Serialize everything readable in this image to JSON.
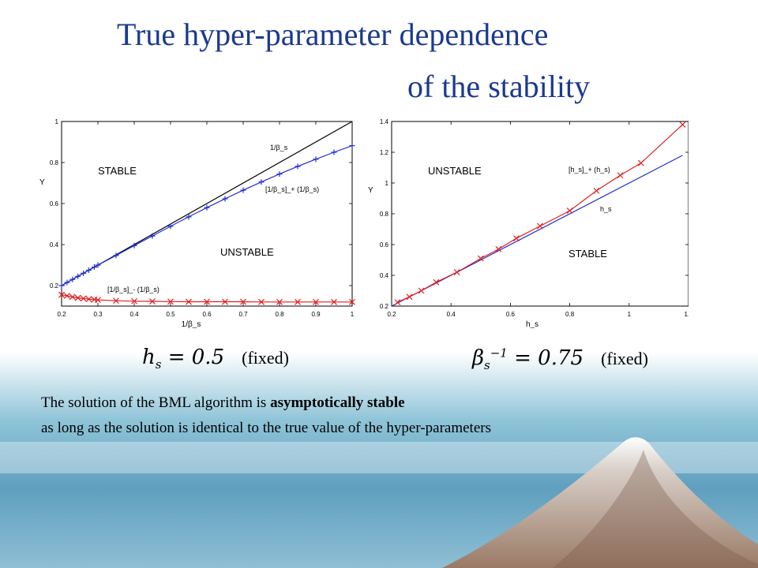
{
  "slide": {
    "title_line1": "True hyper-parameter dependence",
    "title_line2": "of the stability",
    "left_condition": {
      "fixed_label": "(fixed)",
      "equation": "h_s = 0.5"
    },
    "right_condition": {
      "fixed_label": "(fixed)",
      "equation": "beta_s^-1 = 0.75"
    },
    "text_line1_pre": "The solution of the BML algorithm is ",
    "text_line1_bold": "asymptotically stable",
    "text_line2": "as long as the solution is identical to the true value of the hyper-parameters"
  },
  "colors": {
    "title": "#1a3a8f",
    "blue_series": "#2030d0",
    "red_series": "#e02020",
    "reference": "#000000"
  },
  "chart_data": [
    {
      "type": "line",
      "xlabel": "1/β_s",
      "ylabel": "Y",
      "xlim": [
        0.2,
        1.0
      ],
      "ylim": [
        0.1,
        1.0
      ],
      "xticks": [
        "0.2",
        "0.3",
        "0.4",
        "0.5",
        "0.6",
        "0.7",
        "0.8",
        "0.9",
        "1"
      ],
      "yticks": [
        "0.2",
        "0.4",
        "0.6",
        "0.8",
        "1"
      ],
      "region_labels": [
        "STABLE",
        "UNSTABLE"
      ],
      "series": [
        {
          "name": "1/β_s",
          "color": "#000000",
          "marker": "none",
          "x": [
            0.2,
            1.0
          ],
          "y": [
            0.2,
            1.0
          ]
        },
        {
          "name": "[1/β_s]_+ (1/β_s)",
          "color": "#2030d0",
          "marker": "+",
          "x": [
            0.2,
            0.215,
            0.23,
            0.245,
            0.26,
            0.275,
            0.29,
            0.3,
            0.35,
            0.4,
            0.45,
            0.5,
            0.55,
            0.6,
            0.65,
            0.7,
            0.75,
            0.8,
            0.85,
            0.9,
            0.95,
            1.0
          ],
          "y": [
            0.2,
            0.215,
            0.23,
            0.245,
            0.26,
            0.275,
            0.29,
            0.3,
            0.347,
            0.395,
            0.442,
            0.489,
            0.535,
            0.58,
            0.623,
            0.665,
            0.705,
            0.744,
            0.781,
            0.816,
            0.85,
            0.882
          ]
        },
        {
          "name": "[1/β_s]_- (1/β_s)",
          "color": "#e02020",
          "marker": "x",
          "x": [
            0.2,
            0.215,
            0.23,
            0.245,
            0.26,
            0.275,
            0.29,
            0.3,
            0.35,
            0.4,
            0.45,
            0.5,
            0.55,
            0.6,
            0.65,
            0.7,
            0.75,
            0.8,
            0.85,
            0.9,
            0.95,
            1.0
          ],
          "y": [
            0.155,
            0.15,
            0.145,
            0.14,
            0.137,
            0.134,
            0.132,
            0.13,
            0.126,
            0.124,
            0.123,
            0.122,
            0.121,
            0.121,
            0.121,
            0.121,
            0.12,
            0.12,
            0.12,
            0.12,
            0.12,
            0.12
          ]
        }
      ]
    },
    {
      "type": "line",
      "xlabel": "h_s",
      "ylabel": "Y",
      "xlim": [
        0.2,
        1.2
      ],
      "ylim": [
        0.2,
        1.4
      ],
      "xticks": [
        "0.2",
        "0.4",
        "0.6",
        "0.8",
        "1",
        "1.2"
      ],
      "yticks": [
        "0.2",
        "0.4",
        "0.6",
        "0.8",
        "1",
        "1.2",
        "1.4"
      ],
      "region_labels": [
        "UNSTABLE",
        "STABLE"
      ],
      "series": [
        {
          "name": "h_s",
          "color": "#2030d0",
          "marker": "none",
          "x": [
            0.2,
            1.18
          ],
          "y": [
            0.2,
            1.18
          ]
        },
        {
          "name": "[h_s]_+ (h_s)",
          "color": "#e02020",
          "marker": "x",
          "x": [
            0.22,
            0.26,
            0.3,
            0.35,
            0.42,
            0.5,
            0.56,
            0.62,
            0.7,
            0.8,
            0.89,
            0.97,
            1.04,
            1.18
          ],
          "y": [
            0.225,
            0.26,
            0.3,
            0.355,
            0.42,
            0.51,
            0.57,
            0.64,
            0.72,
            0.82,
            0.95,
            1.05,
            1.13,
            1.38
          ]
        }
      ]
    }
  ]
}
